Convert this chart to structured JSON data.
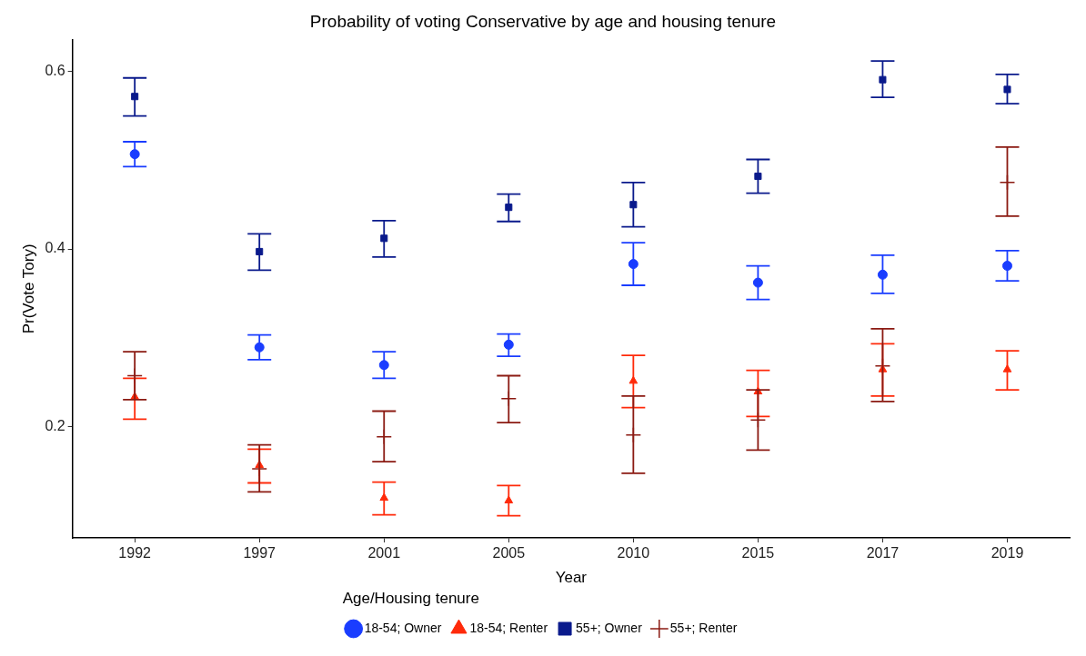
{
  "chart_data": {
    "type": "scatter",
    "title": "Probability of voting Conservative by age and housing tenure",
    "xlabel": "Year",
    "ylabel": "Pr(Vote Tory)",
    "legend_title": "Age/Housing tenure",
    "legend": "bottom",
    "grid": false,
    "categories": [
      "1992",
      "1997",
      "2001",
      "2005",
      "2010",
      "2015",
      "2017",
      "2019"
    ],
    "ylim": [
      0.074,
      0.636
    ],
    "yticks": [
      0.2,
      0.4,
      0.6
    ],
    "series": [
      {
        "name": "18-54; Owner",
        "color": "#1a3dff",
        "marker": "circle",
        "values": [
          0.507,
          0.289,
          0.269,
          0.292,
          0.383,
          0.362,
          0.371,
          0.381
        ],
        "errors": [
          [
            0.493,
            0.521
          ],
          [
            0.275,
            0.303
          ],
          [
            0.254,
            0.284
          ],
          [
            0.279,
            0.304
          ],
          [
            0.359,
            0.407
          ],
          [
            0.343,
            0.381
          ],
          [
            0.35,
            0.393
          ],
          [
            0.364,
            0.398
          ]
        ]
      },
      {
        "name": "18-54; Renter",
        "color": "#ff2a0a",
        "marker": "triangle",
        "values": [
          0.233,
          0.156,
          0.119,
          0.116,
          0.251,
          0.239,
          0.264,
          0.264
        ],
        "errors": [
          [
            0.208,
            0.254
          ],
          [
            0.136,
            0.174
          ],
          [
            0.1,
            0.137
          ],
          [
            0.099,
            0.133
          ],
          [
            0.221,
            0.28
          ],
          [
            0.211,
            0.263
          ],
          [
            0.234,
            0.293
          ],
          [
            0.241,
            0.285
          ]
        ]
      },
      {
        "name": "55+; Owner",
        "color": "#0a1a8c",
        "marker": "square",
        "values": [
          0.572,
          0.397,
          0.412,
          0.447,
          0.45,
          0.482,
          0.591,
          0.58
        ],
        "errors": [
          [
            0.55,
            0.593
          ],
          [
            0.376,
            0.417
          ],
          [
            0.391,
            0.432
          ],
          [
            0.431,
            0.462
          ],
          [
            0.425,
            0.475
          ],
          [
            0.463,
            0.501
          ],
          [
            0.571,
            0.612
          ],
          [
            0.564,
            0.597
          ]
        ]
      },
      {
        "name": "55+; Renter",
        "color": "#8b1a12",
        "marker": "cross",
        "values": [
          0.257,
          0.152,
          0.188,
          0.231,
          0.19,
          0.207,
          0.268,
          0.475
        ],
        "errors": [
          [
            0.23,
            0.284
          ],
          [
            0.126,
            0.179
          ],
          [
            0.16,
            0.217
          ],
          [
            0.204,
            0.257
          ],
          [
            0.147,
            0.234
          ],
          [
            0.173,
            0.241
          ],
          [
            0.228,
            0.31
          ],
          [
            0.437,
            0.515
          ]
        ]
      }
    ]
  }
}
